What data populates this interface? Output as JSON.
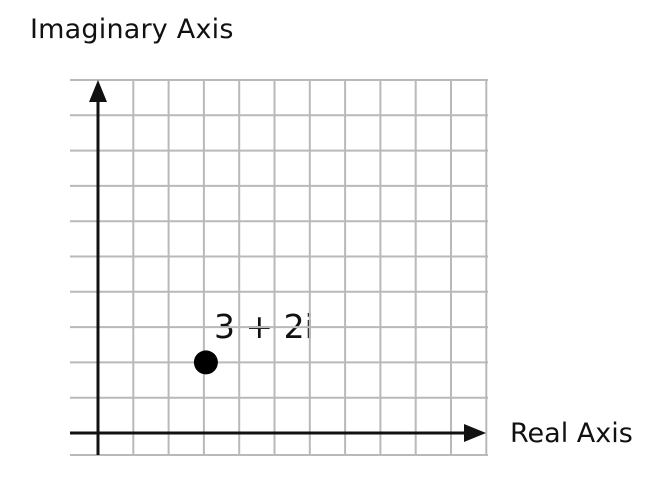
{
  "diagram": {
    "y_axis_title": "Imaginary Axis",
    "x_axis_title": "Real Axis",
    "grid": true,
    "grid_color": "#b9b9b9",
    "axis_color": "#111111",
    "point": {
      "real": 3,
      "imaginary": 2,
      "label": "3 + 2i",
      "color": "#000000"
    }
  }
}
